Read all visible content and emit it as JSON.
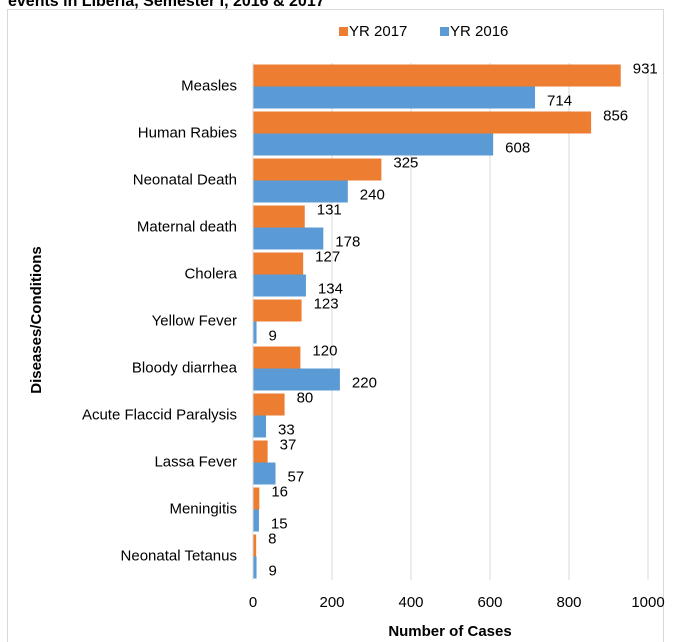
{
  "chart_data": {
    "type": "bar",
    "orientation": "horizontal",
    "title": "events in Liberia, Semester I, 2016 & 2017",
    "x_label": "Number of Cases",
    "y_label": "Diseases/Conditions",
    "categories": [
      "Measles",
      "Human Rabies",
      "Neonatal Death",
      "Maternal death",
      "Cholera",
      "Yellow Fever",
      "Bloody diarrhea",
      "Acute Flaccid Paralysis",
      "Lassa Fever",
      "Meningitis",
      "Neonatal Tetanus"
    ],
    "series": [
      {
        "name": "YR 2017",
        "color": "#ed7d31",
        "values": [
          931,
          856,
          325,
          131,
          127,
          123,
          120,
          80,
          37,
          16,
          8
        ]
      },
      {
        "name": "YR 2016",
        "color": "#5b9bd5",
        "values": [
          714,
          608,
          240,
          178,
          134,
          9,
          220,
          33,
          57,
          15,
          9
        ]
      }
    ],
    "xlim": [
      0,
      1000
    ],
    "xticks": [
      0,
      200,
      400,
      600,
      800,
      1000
    ],
    "grid": true,
    "legend": "top"
  }
}
